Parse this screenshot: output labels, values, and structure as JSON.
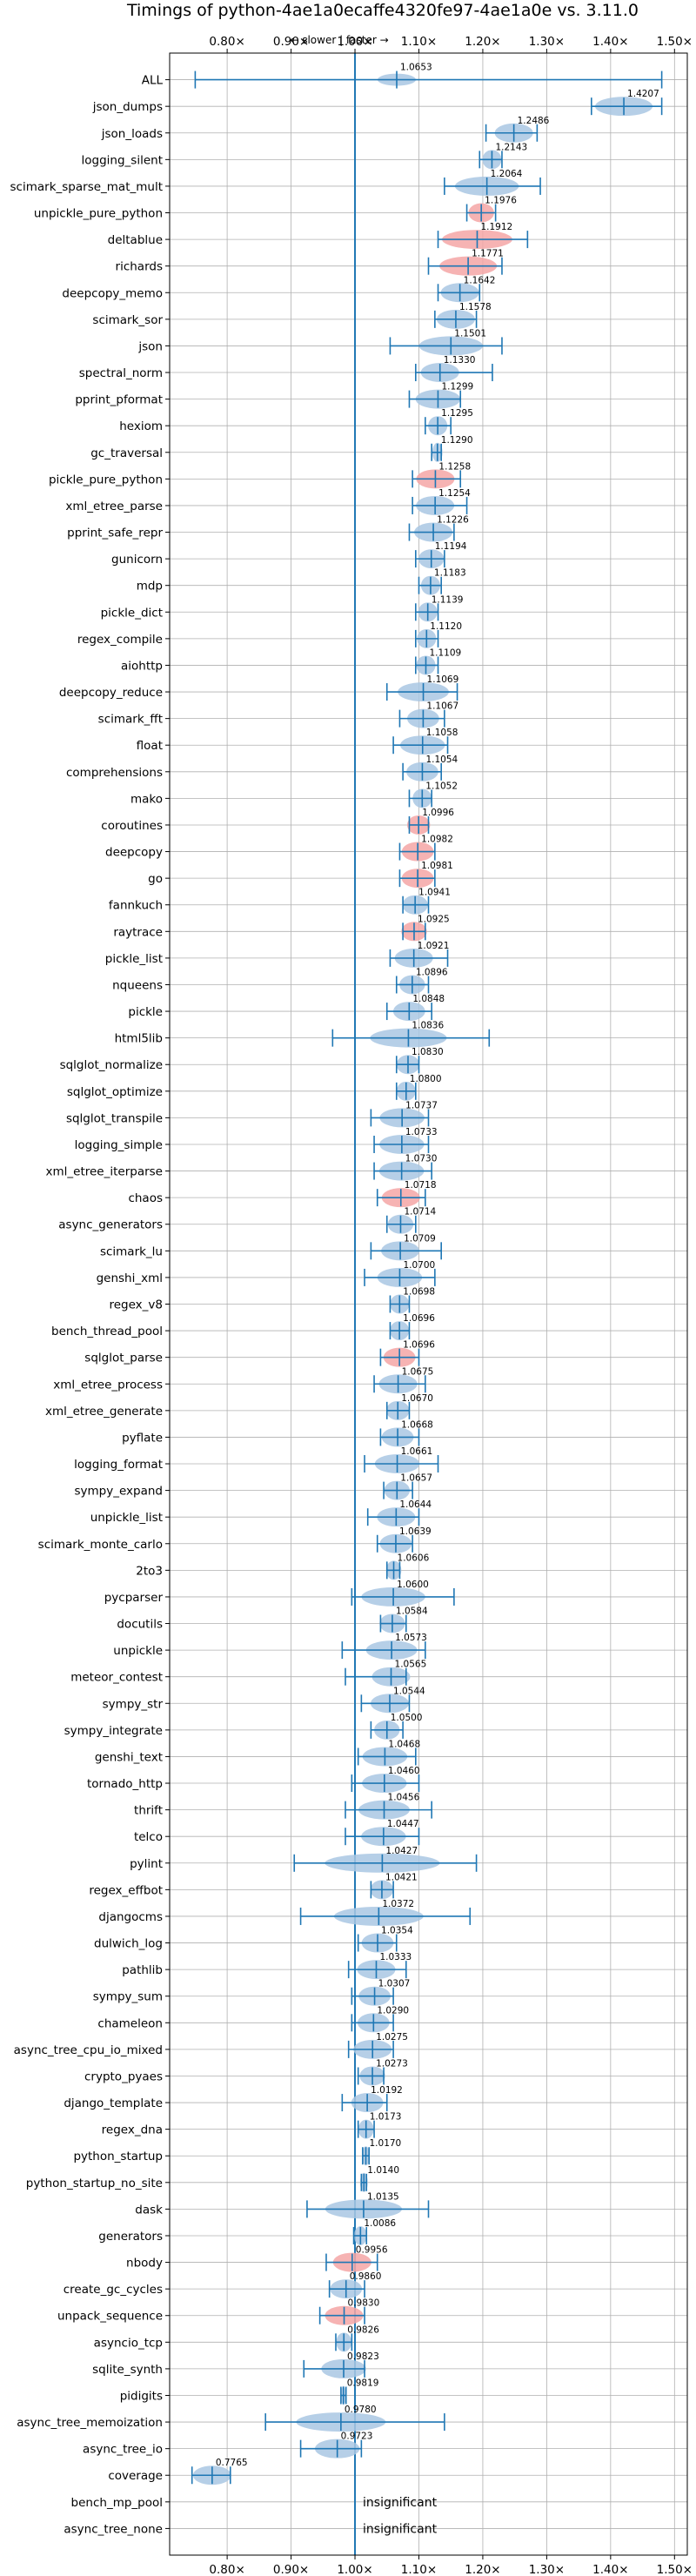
{
  "chart_data": {
    "type": "violin",
    "title": "Timings of python-4ae1a0ecaffe4320fe97-4ae1a0e vs. 3.11.0",
    "annotation": "← slower | faster →",
    "x_ticks": [
      0.8,
      0.9,
      1.0,
      1.1,
      1.2,
      1.3,
      1.4,
      1.5
    ],
    "x_tick_labels": [
      "0.80×",
      "0.90×",
      "1.00×",
      "1.10×",
      "1.20×",
      "1.30×",
      "1.40×",
      "1.50×"
    ],
    "xlim": [
      0.71,
      1.52
    ],
    "reference_line": 1.0,
    "grid": true,
    "colors": {
      "normal": "#1f77b4",
      "highlight": "#f4a6a6",
      "violin_fill": "#a9c7e3"
    },
    "insignificant_label": "insignificant",
    "benchmarks": [
      {
        "name": "ALL",
        "value": 1.0653,
        "label": "1.0653",
        "lo": 0.75,
        "hi": 1.48,
        "spread": 0.03,
        "hl": false,
        "kind": "all"
      },
      {
        "name": "json_dumps",
        "value": 1.4207,
        "label": "1.4207",
        "lo": 1.37,
        "hi": 1.48,
        "spread": 0.045,
        "hl": false
      },
      {
        "name": "json_loads",
        "value": 1.2486,
        "label": "1.2486",
        "lo": 1.205,
        "hi": 1.285,
        "spread": 0.03,
        "hl": false
      },
      {
        "name": "logging_silent",
        "value": 1.2143,
        "label": "1.2143",
        "lo": 1.195,
        "hi": 1.23,
        "spread": 0.015,
        "hl": false
      },
      {
        "name": "scimark_sparse_mat_mult",
        "value": 1.2064,
        "label": "1.2064",
        "lo": 1.14,
        "hi": 1.29,
        "spread": 0.05,
        "hl": false
      },
      {
        "name": "unpickle_pure_python",
        "value": 1.1976,
        "label": "1.1976",
        "lo": 1.175,
        "hi": 1.22,
        "spread": 0.02,
        "hl": true
      },
      {
        "name": "deltablue",
        "value": 1.1912,
        "label": "1.1912",
        "lo": 1.13,
        "hi": 1.27,
        "spread": 0.055,
        "hl": true
      },
      {
        "name": "richards",
        "value": 1.1771,
        "label": "1.1771",
        "lo": 1.115,
        "hi": 1.23,
        "spread": 0.045,
        "hl": true
      },
      {
        "name": "deepcopy_memo",
        "value": 1.1642,
        "label": "1.1642",
        "lo": 1.13,
        "hi": 1.195,
        "spread": 0.03,
        "hl": false
      },
      {
        "name": "scimark_sor",
        "value": 1.1578,
        "label": "1.1578",
        "lo": 1.125,
        "hi": 1.19,
        "spread": 0.03,
        "hl": false
      },
      {
        "name": "json",
        "value": 1.1501,
        "label": "1.1501",
        "lo": 1.055,
        "hi": 1.23,
        "spread": 0.05,
        "hl": false
      },
      {
        "name": "spectral_norm",
        "value": 1.133,
        "label": "1.1330",
        "lo": 1.095,
        "hi": 1.215,
        "spread": 0.03,
        "hl": false
      },
      {
        "name": "pprint_pformat",
        "value": 1.1299,
        "label": "1.1299",
        "lo": 1.085,
        "hi": 1.165,
        "spread": 0.035,
        "hl": false
      },
      {
        "name": "hexiom",
        "value": 1.1295,
        "label": "1.1295",
        "lo": 1.11,
        "hi": 1.15,
        "spread": 0.015,
        "hl": false
      },
      {
        "name": "gc_traversal",
        "value": 1.129,
        "label": "1.1290",
        "lo": 1.12,
        "hi": 1.135,
        "spread": 0.008,
        "hl": false
      },
      {
        "name": "pickle_pure_python",
        "value": 1.1258,
        "label": "1.1258",
        "lo": 1.09,
        "hi": 1.165,
        "spread": 0.03,
        "hl": true
      },
      {
        "name": "xml_etree_parse",
        "value": 1.1254,
        "label": "1.1254",
        "lo": 1.09,
        "hi": 1.175,
        "spread": 0.03,
        "hl": false
      },
      {
        "name": "pprint_safe_repr",
        "value": 1.1226,
        "label": "1.1226",
        "lo": 1.085,
        "hi": 1.155,
        "spread": 0.03,
        "hl": false
      },
      {
        "name": "gunicorn",
        "value": 1.1194,
        "label": "1.1194",
        "lo": 1.095,
        "hi": 1.14,
        "spread": 0.02,
        "hl": false
      },
      {
        "name": "mdp",
        "value": 1.1183,
        "label": "1.1183",
        "lo": 1.1,
        "hi": 1.135,
        "spread": 0.015,
        "hl": false
      },
      {
        "name": "pickle_dict",
        "value": 1.1139,
        "label": "1.1139",
        "lo": 1.095,
        "hi": 1.13,
        "spread": 0.015,
        "hl": false
      },
      {
        "name": "regex_compile",
        "value": 1.112,
        "label": "1.1120",
        "lo": 1.095,
        "hi": 1.13,
        "spread": 0.015,
        "hl": false
      },
      {
        "name": "aiohttp",
        "value": 1.1109,
        "label": "1.1109",
        "lo": 1.095,
        "hi": 1.13,
        "spread": 0.015,
        "hl": false
      },
      {
        "name": "deepcopy_reduce",
        "value": 1.1069,
        "label": "1.1069",
        "lo": 1.05,
        "hi": 1.16,
        "spread": 0.04,
        "hl": false
      },
      {
        "name": "scimark_fft",
        "value": 1.1067,
        "label": "1.1067",
        "lo": 1.07,
        "hi": 1.14,
        "spread": 0.025,
        "hl": false
      },
      {
        "name": "float",
        "value": 1.1058,
        "label": "1.1058",
        "lo": 1.06,
        "hi": 1.145,
        "spread": 0.035,
        "hl": false
      },
      {
        "name": "comprehensions",
        "value": 1.1054,
        "label": "1.1054",
        "lo": 1.075,
        "hi": 1.135,
        "spread": 0.025,
        "hl": false
      },
      {
        "name": "mako",
        "value": 1.1052,
        "label": "1.1052",
        "lo": 1.085,
        "hi": 1.12,
        "spread": 0.015,
        "hl": false
      },
      {
        "name": "coroutines",
        "value": 1.0996,
        "label": "1.0996",
        "lo": 1.085,
        "hi": 1.115,
        "spread": 0.018,
        "hl": true
      },
      {
        "name": "deepcopy",
        "value": 1.0982,
        "label": "1.0982",
        "lo": 1.07,
        "hi": 1.125,
        "spread": 0.025,
        "hl": true
      },
      {
        "name": "go",
        "value": 1.0981,
        "label": "1.0981",
        "lo": 1.07,
        "hi": 1.125,
        "spread": 0.025,
        "hl": true
      },
      {
        "name": "fannkuch",
        "value": 1.0941,
        "label": "1.0941",
        "lo": 1.075,
        "hi": 1.115,
        "spread": 0.02,
        "hl": false
      },
      {
        "name": "raytrace",
        "value": 1.0925,
        "label": "1.0925",
        "lo": 1.075,
        "hi": 1.11,
        "spread": 0.02,
        "hl": true
      },
      {
        "name": "pickle_list",
        "value": 1.0921,
        "label": "1.0921",
        "lo": 1.055,
        "hi": 1.145,
        "spread": 0.03,
        "hl": false
      },
      {
        "name": "nqueens",
        "value": 1.0896,
        "label": "1.0896",
        "lo": 1.065,
        "hi": 1.115,
        "spread": 0.02,
        "hl": false
      },
      {
        "name": "pickle",
        "value": 1.0848,
        "label": "1.0848",
        "lo": 1.05,
        "hi": 1.12,
        "spread": 0.025,
        "hl": false
      },
      {
        "name": "html5lib",
        "value": 1.0836,
        "label": "1.0836",
        "lo": 0.965,
        "hi": 1.21,
        "spread": 0.06,
        "hl": false
      },
      {
        "name": "sqlglot_normalize",
        "value": 1.083,
        "label": "1.0830",
        "lo": 1.065,
        "hi": 1.1,
        "spread": 0.018,
        "hl": false
      },
      {
        "name": "sqlglot_optimize",
        "value": 1.08,
        "label": "1.0800",
        "lo": 1.065,
        "hi": 1.095,
        "spread": 0.015,
        "hl": false
      },
      {
        "name": "sqlglot_transpile",
        "value": 1.0737,
        "label": "1.0737",
        "lo": 1.025,
        "hi": 1.115,
        "spread": 0.035,
        "hl": false
      },
      {
        "name": "logging_simple",
        "value": 1.0733,
        "label": "1.0733",
        "lo": 1.03,
        "hi": 1.115,
        "spread": 0.035,
        "hl": false
      },
      {
        "name": "xml_etree_iterparse",
        "value": 1.073,
        "label": "1.0730",
        "lo": 1.03,
        "hi": 1.12,
        "spread": 0.035,
        "hl": false
      },
      {
        "name": "chaos",
        "value": 1.0718,
        "label": "1.0718",
        "lo": 1.035,
        "hi": 1.11,
        "spread": 0.03,
        "hl": true
      },
      {
        "name": "async_generators",
        "value": 1.0714,
        "label": "1.0714",
        "lo": 1.05,
        "hi": 1.095,
        "spread": 0.02,
        "hl": false
      },
      {
        "name": "scimark_lu",
        "value": 1.0709,
        "label": "1.0709",
        "lo": 1.025,
        "hi": 1.135,
        "spread": 0.03,
        "hl": false
      },
      {
        "name": "genshi_xml",
        "value": 1.07,
        "label": "1.0700",
        "lo": 1.015,
        "hi": 1.125,
        "spread": 0.035,
        "hl": false
      },
      {
        "name": "regex_v8",
        "value": 1.0698,
        "label": "1.0698",
        "lo": 1.055,
        "hi": 1.085,
        "spread": 0.015,
        "hl": false
      },
      {
        "name": "bench_thread_pool",
        "value": 1.0696,
        "label": "1.0696",
        "lo": 1.055,
        "hi": 1.085,
        "spread": 0.015,
        "hl": false
      },
      {
        "name": "sqlglot_parse",
        "value": 1.0696,
        "label": "1.0696",
        "lo": 1.04,
        "hi": 1.1,
        "spread": 0.025,
        "hl": true
      },
      {
        "name": "xml_etree_process",
        "value": 1.0675,
        "label": "1.0675",
        "lo": 1.03,
        "hi": 1.11,
        "spread": 0.03,
        "hl": false
      },
      {
        "name": "xml_etree_generate",
        "value": 1.067,
        "label": "1.0670",
        "lo": 1.05,
        "hi": 1.085,
        "spread": 0.018,
        "hl": false
      },
      {
        "name": "pyflate",
        "value": 1.0668,
        "label": "1.0668",
        "lo": 1.04,
        "hi": 1.1,
        "spread": 0.025,
        "hl": false
      },
      {
        "name": "logging_format",
        "value": 1.0661,
        "label": "1.0661",
        "lo": 1.015,
        "hi": 1.13,
        "spread": 0.035,
        "hl": false
      },
      {
        "name": "sympy_expand",
        "value": 1.0657,
        "label": "1.0657",
        "lo": 1.045,
        "hi": 1.09,
        "spread": 0.02,
        "hl": false
      },
      {
        "name": "unpickle_list",
        "value": 1.0644,
        "label": "1.0644",
        "lo": 1.02,
        "hi": 1.1,
        "spread": 0.03,
        "hl": false
      },
      {
        "name": "scimark_monte_carlo",
        "value": 1.0639,
        "label": "1.0639",
        "lo": 1.035,
        "hi": 1.09,
        "spread": 0.025,
        "hl": false
      },
      {
        "name": "2to3",
        "value": 1.0606,
        "label": "1.0606",
        "lo": 1.05,
        "hi": 1.07,
        "spread": 0.012,
        "hl": false
      },
      {
        "name": "pycparser",
        "value": 1.06,
        "label": "1.0600",
        "lo": 0.995,
        "hi": 1.155,
        "spread": 0.05,
        "hl": false
      },
      {
        "name": "docutils",
        "value": 1.0584,
        "label": "1.0584",
        "lo": 1.04,
        "hi": 1.08,
        "spread": 0.02,
        "hl": false
      },
      {
        "name": "unpickle",
        "value": 1.0573,
        "label": "1.0573",
        "lo": 0.98,
        "hi": 1.11,
        "spread": 0.04,
        "hl": false
      },
      {
        "name": "meteor_contest",
        "value": 1.0565,
        "label": "1.0565",
        "lo": 0.985,
        "hi": 1.08,
        "spread": 0.03,
        "hl": false
      },
      {
        "name": "sympy_str",
        "value": 1.0544,
        "label": "1.0544",
        "lo": 1.01,
        "hi": 1.085,
        "spread": 0.03,
        "hl": false
      },
      {
        "name": "sympy_integrate",
        "value": 1.05,
        "label": "1.0500",
        "lo": 1.025,
        "hi": 1.075,
        "spread": 0.02,
        "hl": false
      },
      {
        "name": "genshi_text",
        "value": 1.0468,
        "label": "1.0468",
        "lo": 1.005,
        "hi": 1.095,
        "spread": 0.035,
        "hl": false
      },
      {
        "name": "tornado_http",
        "value": 1.046,
        "label": "1.0460",
        "lo": 0.995,
        "hi": 1.1,
        "spread": 0.035,
        "hl": false
      },
      {
        "name": "thrift",
        "value": 1.0456,
        "label": "1.0456",
        "lo": 0.985,
        "hi": 1.12,
        "spread": 0.04,
        "hl": false
      },
      {
        "name": "telco",
        "value": 1.0447,
        "label": "1.0447",
        "lo": 0.985,
        "hi": 1.1,
        "spread": 0.035,
        "hl": false
      },
      {
        "name": "pylint",
        "value": 1.0427,
        "label": "1.0427",
        "lo": 0.905,
        "hi": 1.19,
        "spread": 0.09,
        "hl": false
      },
      {
        "name": "regex_effbot",
        "value": 1.0421,
        "label": "1.0421",
        "lo": 1.025,
        "hi": 1.06,
        "spread": 0.018,
        "hl": false
      },
      {
        "name": "djangocms",
        "value": 1.0372,
        "label": "1.0372",
        "lo": 0.915,
        "hi": 1.18,
        "spread": 0.07,
        "hl": false
      },
      {
        "name": "dulwich_log",
        "value": 1.0354,
        "label": "1.0354",
        "lo": 1.005,
        "hi": 1.065,
        "spread": 0.025,
        "hl": false
      },
      {
        "name": "pathlib",
        "value": 1.0333,
        "label": "1.0333",
        "lo": 0.99,
        "hi": 1.08,
        "spread": 0.03,
        "hl": false
      },
      {
        "name": "sympy_sum",
        "value": 1.0307,
        "label": "1.0307",
        "lo": 0.995,
        "hi": 1.06,
        "spread": 0.025,
        "hl": false
      },
      {
        "name": "chameleon",
        "value": 1.029,
        "label": "1.0290",
        "lo": 0.995,
        "hi": 1.06,
        "spread": 0.025,
        "hl": false
      },
      {
        "name": "async_tree_cpu_io_mixed",
        "value": 1.0275,
        "label": "1.0275",
        "lo": 0.99,
        "hi": 1.06,
        "spread": 0.03,
        "hl": false
      },
      {
        "name": "crypto_pyaes",
        "value": 1.0273,
        "label": "1.0273",
        "lo": 1.005,
        "hi": 1.045,
        "spread": 0.02,
        "hl": false
      },
      {
        "name": "django_template",
        "value": 1.0192,
        "label": "1.0192",
        "lo": 0.98,
        "hi": 1.05,
        "spread": 0.025,
        "hl": false
      },
      {
        "name": "regex_dna",
        "value": 1.0173,
        "label": "1.0173",
        "lo": 1.005,
        "hi": 1.03,
        "spread": 0.012,
        "hl": false
      },
      {
        "name": "python_startup",
        "value": 1.017,
        "label": "1.0170",
        "lo": 1.012,
        "hi": 1.022,
        "spread": 0.006,
        "hl": false
      },
      {
        "name": "python_startup_no_site",
        "value": 1.014,
        "label": "1.0140",
        "lo": 1.01,
        "hi": 1.018,
        "spread": 0.006,
        "hl": false
      },
      {
        "name": "dask",
        "value": 1.0135,
        "label": "1.0135",
        "lo": 0.925,
        "hi": 1.115,
        "spread": 0.06,
        "hl": false
      },
      {
        "name": "generators",
        "value": 1.0086,
        "label": "1.0086",
        "lo": 0.998,
        "hi": 1.018,
        "spread": 0.01,
        "hl": false
      },
      {
        "name": "nbody",
        "value": 0.9956,
        "label": "0.9956",
        "lo": 0.955,
        "hi": 1.035,
        "spread": 0.03,
        "hl": true
      },
      {
        "name": "create_gc_cycles",
        "value": 0.986,
        "label": "0.9860",
        "lo": 0.96,
        "hi": 1.015,
        "spread": 0.025,
        "hl": false
      },
      {
        "name": "unpack_sequence",
        "value": 0.983,
        "label": "0.9830",
        "lo": 0.945,
        "hi": 1.015,
        "spread": 0.03,
        "hl": true
      },
      {
        "name": "asyncio_tcp",
        "value": 0.9826,
        "label": "0.9826",
        "lo": 0.97,
        "hi": 0.995,
        "spread": 0.012,
        "hl": false
      },
      {
        "name": "sqlite_synth",
        "value": 0.9823,
        "label": "0.9823",
        "lo": 0.92,
        "hi": 1.015,
        "spread": 0.035,
        "hl": false
      },
      {
        "name": "pidigits",
        "value": 0.9819,
        "label": "0.9819",
        "lo": 0.978,
        "hi": 0.986,
        "spread": 0.004,
        "hl": false
      },
      {
        "name": "async_tree_memoization",
        "value": 0.978,
        "label": "0.9780",
        "lo": 0.86,
        "hi": 1.14,
        "spread": 0.07,
        "hl": false
      },
      {
        "name": "async_tree_io",
        "value": 0.9723,
        "label": "0.9723",
        "lo": 0.915,
        "hi": 1.01,
        "spread": 0.035,
        "hl": false
      },
      {
        "name": "coverage",
        "value": 0.7765,
        "label": "0.7765",
        "lo": 0.745,
        "hi": 0.805,
        "spread": 0.03,
        "hl": false
      },
      {
        "name": "bench_mp_pool",
        "insignificant": true
      },
      {
        "name": "async_tree_none",
        "insignificant": true
      }
    ]
  }
}
